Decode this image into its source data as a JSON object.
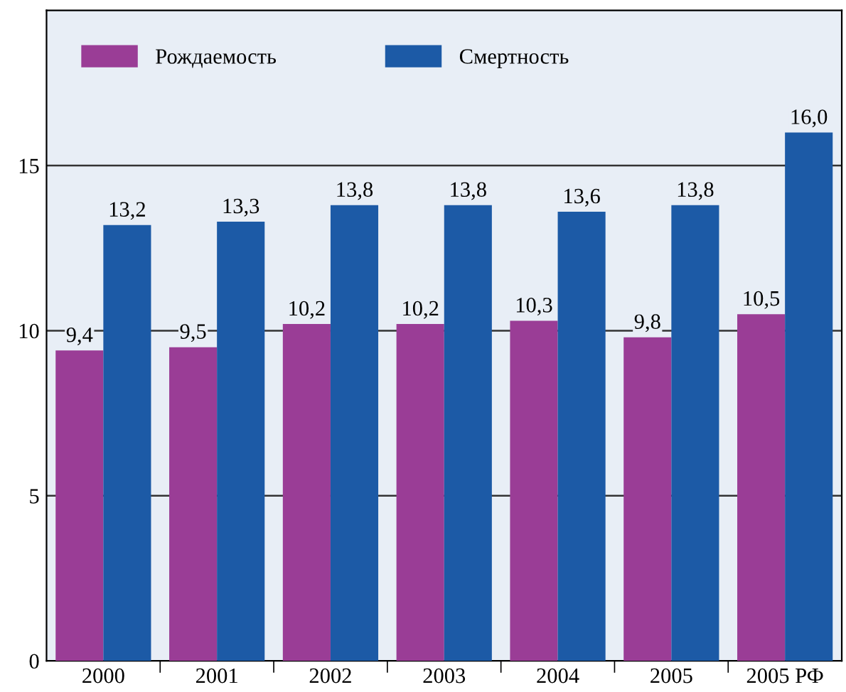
{
  "chart_data": {
    "type": "bar",
    "categories": [
      "2000",
      "2001",
      "2002",
      "2003",
      "2004",
      "2005",
      "2005 РФ"
    ],
    "series": [
      {
        "name": "Рождаемость",
        "color": "#9a3d96",
        "values": [
          9.4,
          9.5,
          10.2,
          10.2,
          10.3,
          9.8,
          10.5
        ],
        "value_labels": [
          "9,4",
          "9,5",
          "10,2",
          "10,2",
          "10,3",
          "9,8",
          "10,5"
        ]
      },
      {
        "name": "Смертность",
        "color": "#1c5aa6",
        "values": [
          13.2,
          13.3,
          13.8,
          13.8,
          13.6,
          13.8,
          16.0
        ],
        "value_labels": [
          "13,2",
          "13,3",
          "13,8",
          "13,8",
          "13,6",
          "13,8",
          "16,0"
        ]
      }
    ],
    "ylim": [
      0,
      19.7
    ],
    "yticks": [
      0,
      5,
      10,
      15
    ],
    "grid": "y",
    "legend": "top left"
  }
}
